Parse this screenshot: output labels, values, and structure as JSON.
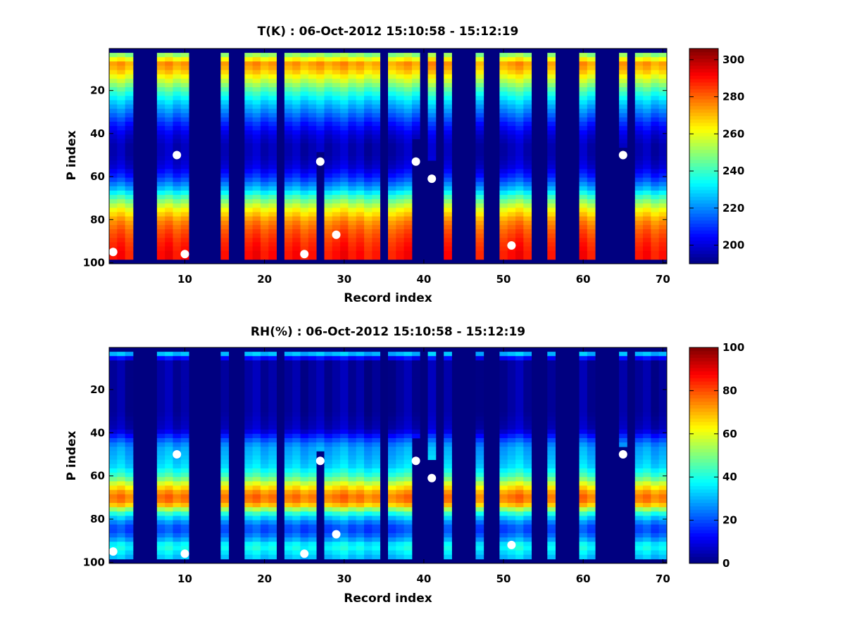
{
  "chart_data": [
    {
      "type": "heatmap",
      "title": "T(K) : 06-Oct-2012 15:10:58 - 15:12:19",
      "xlabel": "Record index",
      "ylabel": "P index",
      "xlim": [
        0.5,
        70.5
      ],
      "ylim": [
        100,
        1
      ],
      "y_reversed": true,
      "xticks": [
        10,
        20,
        30,
        40,
        50,
        60,
        70
      ],
      "yticks": [
        20,
        40,
        60,
        80,
        100
      ],
      "colorbar": {
        "range": [
          190,
          306
        ],
        "ticks": [
          200,
          220,
          240,
          260,
          280,
          300
        ],
        "colormap": "jet"
      },
      "columns_with_data": [
        1,
        2,
        3,
        7,
        8,
        9,
        10,
        15,
        18,
        19,
        20,
        21,
        23,
        24,
        25,
        26,
        27,
        28,
        29,
        30,
        31,
        32,
        33,
        34,
        36,
        37,
        38,
        39,
        41,
        43,
        47,
        50,
        51,
        52,
        53,
        56,
        60,
        61,
        65,
        67,
        68,
        69,
        70
      ],
      "column_extents": {
        "27": 47,
        "39": 41,
        "41": 52,
        "65": 46
      },
      "profile_p_index": [
        4,
        6,
        10,
        15,
        20,
        25,
        30,
        35,
        40,
        45,
        50,
        55,
        60,
        65,
        70,
        75,
        80,
        85,
        90,
        95,
        98
      ],
      "profile_value": [
        250,
        275,
        270,
        255,
        240,
        228,
        218,
        208,
        200,
        196,
        196,
        200,
        210,
        225,
        245,
        262,
        275,
        282,
        287,
        290,
        290
      ],
      "markers": [
        {
          "record": 1,
          "p_index": 95
        },
        {
          "record": 9,
          "p_index": 50
        },
        {
          "record": 10,
          "p_index": 96
        },
        {
          "record": 25,
          "p_index": 96
        },
        {
          "record": 27,
          "p_index": 53
        },
        {
          "record": 29,
          "p_index": 87
        },
        {
          "record": 39,
          "p_index": 53
        },
        {
          "record": 41,
          "p_index": 61
        },
        {
          "record": 51,
          "p_index": 92
        },
        {
          "record": 65,
          "p_index": 50
        }
      ]
    },
    {
      "type": "heatmap",
      "title": "RH(%) : 06-Oct-2012 15:10:58 - 15:12:19",
      "xlabel": "Record index",
      "ylabel": "P index",
      "xlim": [
        0.5,
        70.5
      ],
      "ylim": [
        100,
        1
      ],
      "y_reversed": true,
      "xticks": [
        10,
        20,
        30,
        40,
        50,
        60,
        70
      ],
      "yticks": [
        20,
        40,
        60,
        80,
        100
      ],
      "colorbar": {
        "range": [
          0,
          100
        ],
        "ticks": [
          0,
          20,
          40,
          60,
          80,
          100
        ],
        "colormap": "jet"
      },
      "columns_with_data": [
        1,
        2,
        3,
        7,
        8,
        9,
        10,
        15,
        18,
        19,
        20,
        21,
        23,
        24,
        25,
        26,
        27,
        28,
        29,
        30,
        31,
        32,
        33,
        34,
        36,
        37,
        38,
        39,
        41,
        43,
        47,
        50,
        51,
        52,
        53,
        56,
        60,
        61,
        65,
        67,
        68,
        69,
        70
      ],
      "column_extents": {
        "27": 47,
        "39": 41,
        "41": 52,
        "65": 46
      },
      "profile_p_index": [
        2,
        6,
        30,
        38,
        42,
        46,
        50,
        55,
        60,
        64,
        67,
        70,
        73,
        76,
        80,
        84,
        88,
        92,
        95,
        98
      ],
      "profile_value": [
        40,
        3,
        3,
        6,
        18,
        28,
        30,
        34,
        45,
        62,
        72,
        78,
        68,
        45,
        28,
        18,
        25,
        40,
        35,
        30
      ],
      "markers": [
        {
          "record": 1,
          "p_index": 95
        },
        {
          "record": 9,
          "p_index": 50
        },
        {
          "record": 10,
          "p_index": 96
        },
        {
          "record": 25,
          "p_index": 96
        },
        {
          "record": 27,
          "p_index": 53
        },
        {
          "record": 29,
          "p_index": 87
        },
        {
          "record": 39,
          "p_index": 53
        },
        {
          "record": 41,
          "p_index": 61
        },
        {
          "record": 51,
          "p_index": 92
        },
        {
          "record": 65,
          "p_index": 50
        }
      ]
    }
  ]
}
